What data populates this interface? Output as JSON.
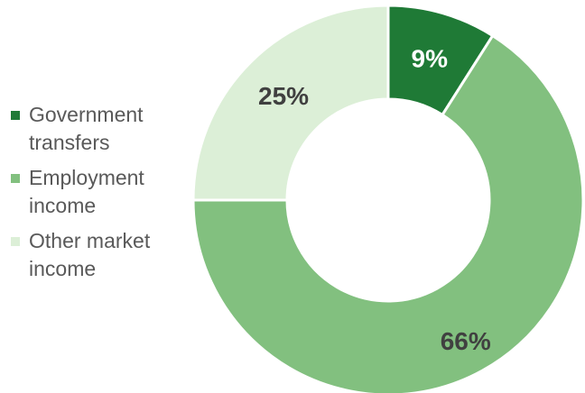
{
  "chart_data": {
    "type": "pie",
    "categories": [
      "Government\ntransfers",
      "Employment\nincome",
      "Other market\nincome"
    ],
    "values": [
      9,
      66,
      25
    ],
    "data_labels": [
      "9%",
      "66%",
      "25%"
    ],
    "colors": [
      "#1f7a36",
      "#82c07f",
      "#dcefd7"
    ],
    "label_colors": [
      "#ffffff",
      "#404040",
      "#404040"
    ],
    "legend_position": "left",
    "donut": true
  }
}
